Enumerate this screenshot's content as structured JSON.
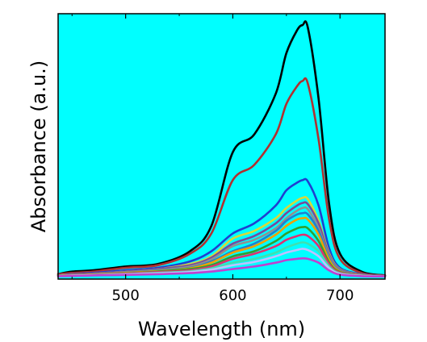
{
  "chart_data": {
    "type": "line",
    "title": "",
    "xlabel": "Wavelength (nm)",
    "ylabel": "Absorbance (a.u.)",
    "xlim": [
      437,
      742
    ],
    "ylim": [
      0,
      1.0
    ],
    "x_ticks": [
      500,
      600,
      700
    ],
    "y_tick_labels_shown": false,
    "grid": false,
    "legend": "none",
    "plot_background": "#00ffff",
    "x": [
      437,
      450,
      470,
      500,
      530,
      560,
      580,
      600,
      620,
      640,
      650,
      660,
      665,
      670,
      680,
      690,
      700,
      720,
      742
    ],
    "series": [
      {
        "color": "#000000",
        "values": [
          0.01,
          0.02,
          0.025,
          0.04,
          0.05,
          0.1,
          0.2,
          0.49,
          0.56,
          0.72,
          0.88,
          0.97,
          0.99,
          0.98,
          0.7,
          0.28,
          0.09,
          0.02,
          0.005
        ]
      },
      {
        "color": "#b03030",
        "values": [
          0.01,
          0.015,
          0.02,
          0.035,
          0.045,
          0.09,
          0.17,
          0.38,
          0.44,
          0.56,
          0.68,
          0.75,
          0.77,
          0.76,
          0.54,
          0.22,
          0.07,
          0.015,
          0.005
        ]
      },
      {
        "color": "#1f3fd0",
        "values": [
          0.005,
          0.01,
          0.015,
          0.025,
          0.035,
          0.06,
          0.1,
          0.17,
          0.21,
          0.28,
          0.34,
          0.37,
          0.38,
          0.375,
          0.28,
          0.11,
          0.035,
          0.01,
          0.003
        ]
      },
      {
        "color": "#d8d838",
        "values": [
          0.005,
          0.008,
          0.012,
          0.02,
          0.03,
          0.05,
          0.08,
          0.15,
          0.18,
          0.23,
          0.27,
          0.3,
          0.31,
          0.305,
          0.22,
          0.09,
          0.03,
          0.008,
          0.002
        ]
      },
      {
        "color": "#7a4a9a",
        "values": [
          0.005,
          0.008,
          0.012,
          0.02,
          0.03,
          0.045,
          0.075,
          0.13,
          0.16,
          0.21,
          0.25,
          0.28,
          0.29,
          0.285,
          0.21,
          0.085,
          0.028,
          0.008,
          0.002
        ]
      },
      {
        "color": "#909090",
        "values": [
          0.004,
          0.007,
          0.01,
          0.018,
          0.026,
          0.04,
          0.068,
          0.12,
          0.145,
          0.19,
          0.23,
          0.26,
          0.27,
          0.265,
          0.19,
          0.078,
          0.025,
          0.007,
          0.002
        ]
      },
      {
        "color": "#2080d0",
        "values": [
          0.004,
          0.006,
          0.009,
          0.016,
          0.024,
          0.035,
          0.06,
          0.1,
          0.13,
          0.18,
          0.22,
          0.245,
          0.25,
          0.245,
          0.18,
          0.07,
          0.022,
          0.006,
          0.002
        ]
      },
      {
        "color": "#f0a000",
        "values": [
          0.004,
          0.006,
          0.009,
          0.015,
          0.022,
          0.033,
          0.055,
          0.095,
          0.12,
          0.165,
          0.2,
          0.225,
          0.23,
          0.225,
          0.165,
          0.065,
          0.02,
          0.006,
          0.002
        ]
      },
      {
        "color": "#30a030",
        "values": [
          0.003,
          0.005,
          0.008,
          0.013,
          0.02,
          0.03,
          0.045,
          0.08,
          0.1,
          0.14,
          0.17,
          0.19,
          0.195,
          0.19,
          0.14,
          0.055,
          0.018,
          0.005,
          0.002
        ]
      },
      {
        "color": "#e03070",
        "values": [
          0.003,
          0.005,
          0.007,
          0.012,
          0.018,
          0.025,
          0.04,
          0.07,
          0.09,
          0.12,
          0.145,
          0.16,
          0.165,
          0.16,
          0.12,
          0.048,
          0.016,
          0.005,
          0.002
        ]
      },
      {
        "color": "#40e0b0",
        "values": [
          0.003,
          0.004,
          0.006,
          0.01,
          0.015,
          0.021,
          0.033,
          0.055,
          0.07,
          0.095,
          0.115,
          0.13,
          0.135,
          0.13,
          0.1,
          0.04,
          0.013,
          0.004,
          0.001
        ]
      },
      {
        "color": "#c0c0ff",
        "values": [
          0.002,
          0.004,
          0.006,
          0.009,
          0.013,
          0.018,
          0.028,
          0.045,
          0.058,
          0.08,
          0.095,
          0.105,
          0.11,
          0.105,
          0.08,
          0.033,
          0.011,
          0.003,
          0.001
        ]
      },
      {
        "color": "#c040d0",
        "values": [
          0.002,
          0.003,
          0.005,
          0.007,
          0.01,
          0.014,
          0.02,
          0.03,
          0.04,
          0.055,
          0.065,
          0.07,
          0.072,
          0.07,
          0.055,
          0.024,
          0.008,
          0.002,
          0.001
        ]
      }
    ]
  }
}
